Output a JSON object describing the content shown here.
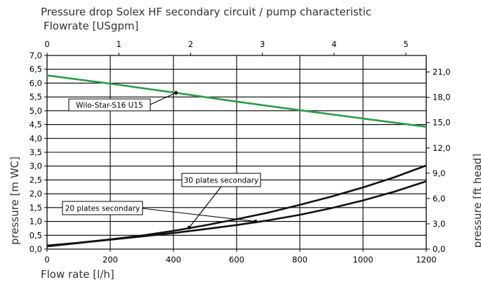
{
  "chart_data": {
    "type": "line",
    "title": "Pressure drop Solex HF secondary circuit / pump characteristic",
    "xlabel": "Flow rate [l/h]",
    "x2label": "Flowrate [USgpm]",
    "ylabel": "pressure [m WC]",
    "y2label": "pressure [ft head]",
    "xlim": [
      0,
      1200
    ],
    "ylim": [
      0,
      7.0
    ],
    "x2lim": [
      0,
      5.2834
    ],
    "y2lim": [
      0,
      22.966
    ],
    "grid": true,
    "xticks": [
      "0",
      "200",
      "400",
      "600",
      "800",
      "1000",
      "1200"
    ],
    "yticks": [
      "0,0",
      "0,5",
      "1,0",
      "1,5",
      "2,0",
      "2,5",
      "3,0",
      "3,5",
      "4,0",
      "4,5",
      "5,0",
      "5,5",
      "6,0",
      "6,5",
      "7,0"
    ],
    "x2ticks": [
      "0",
      "1",
      "2",
      "3",
      "4",
      "5"
    ],
    "y2ticks": [
      "0,0",
      "3,0",
      "6,0",
      "9,0",
      "12,0",
      "15,0",
      "18,0",
      "21,0"
    ],
    "series": [
      {
        "name": "Wilo-Star-S16 U15",
        "color": "#2e9b47",
        "x": [
          0,
          200,
          400,
          600,
          800,
          1000,
          1200
        ],
        "y": [
          6.28,
          5.98,
          5.66,
          5.33,
          5.02,
          4.72,
          4.42
        ],
        "marker_point": [
          408,
          5.65
        ]
      },
      {
        "name": "30 plates secondary",
        "color": "#111111",
        "x": [
          0,
          100,
          200,
          300,
          400,
          500,
          600,
          700,
          800,
          900,
          1000,
          1100,
          1200
        ],
        "y": [
          0.13,
          0.23,
          0.35,
          0.49,
          0.66,
          0.86,
          1.08,
          1.32,
          1.6,
          1.9,
          2.23,
          2.6,
          3.02
        ],
        "marker_point": [
          450,
          0.78
        ]
      },
      {
        "name": "20 plates secondary",
        "color": "#111111",
        "x": [
          0,
          100,
          200,
          300,
          400,
          500,
          600,
          700,
          800,
          900,
          1000,
          1100,
          1200
        ],
        "y": [
          0.1,
          0.22,
          0.34,
          0.46,
          0.58,
          0.72,
          0.87,
          1.04,
          1.24,
          1.48,
          1.76,
          2.08,
          2.45
        ],
        "marker_point": [
          660,
          1.0
        ]
      }
    ]
  }
}
